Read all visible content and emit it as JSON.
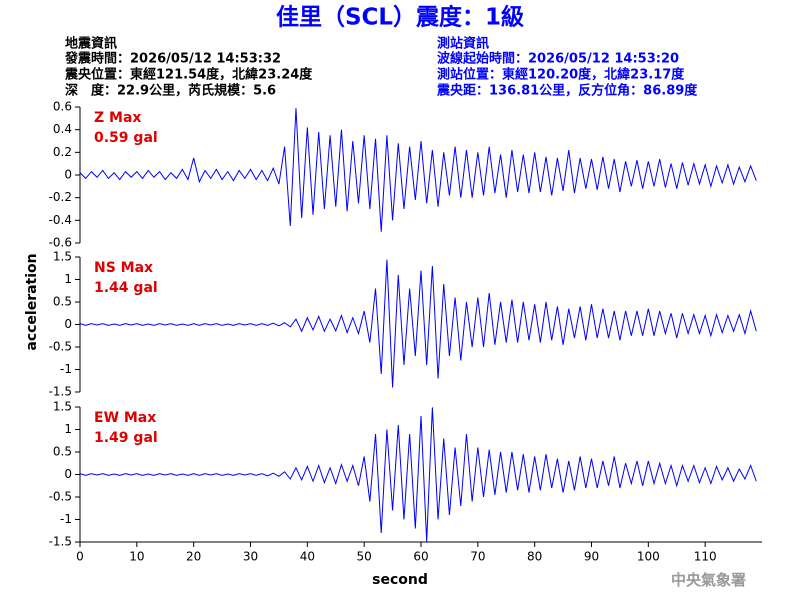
{
  "header": {
    "title": "佳里（SCL）震度：1級",
    "left": [
      "地震資訊",
      "發震時間：2026/05/12 14:53:32",
      "震央位置：東經121.54度，北緯23.24度",
      "深　度：22.9公里，芮氏規模：5.6"
    ],
    "right": [
      "測站資訊",
      "波線起始時間：2026/05/12 14:53:20",
      "測站位置：東經120.20度，北緯23.17度",
      "震央距：136.81公里，反方位角：86.89度"
    ]
  },
  "footer": "中央氣象署",
  "chart_data": {
    "type": "line",
    "xlabel": "second",
    "ylabel": "acceleration",
    "xlim": [
      0,
      120
    ],
    "xticks": [
      0,
      10,
      20,
      30,
      40,
      50,
      60,
      70,
      80,
      90,
      100,
      110
    ],
    "x": [
      0,
      1,
      2,
      3,
      4,
      5,
      6,
      7,
      8,
      9,
      10,
      11,
      12,
      13,
      14,
      15,
      16,
      17,
      18,
      19,
      20,
      21,
      22,
      23,
      24,
      25,
      26,
      27,
      28,
      29,
      30,
      31,
      32,
      33,
      34,
      35,
      36,
      37,
      38,
      39,
      40,
      41,
      42,
      43,
      44,
      45,
      46,
      47,
      48,
      49,
      50,
      51,
      52,
      53,
      54,
      55,
      56,
      57,
      58,
      59,
      60,
      61,
      62,
      63,
      64,
      65,
      66,
      67,
      68,
      69,
      70,
      71,
      72,
      73,
      74,
      75,
      76,
      77,
      78,
      79,
      80,
      81,
      82,
      83,
      84,
      85,
      86,
      87,
      88,
      89,
      90,
      91,
      92,
      93,
      94,
      95,
      96,
      97,
      98,
      99,
      100,
      101,
      102,
      103,
      104,
      105,
      106,
      107,
      108,
      109,
      110,
      111,
      112,
      113,
      114,
      115,
      116,
      117,
      118,
      119
    ],
    "series": [
      {
        "name": "Z Max",
        "max_label": "0.59 gal",
        "color": "#0000ff",
        "ylim": [
          -0.6,
          0.6
        ],
        "yticks": [
          0.6,
          0.4,
          0.2,
          0,
          -0.2,
          -0.4,
          -0.6
        ],
        "values": [
          0.02,
          -0.03,
          0.03,
          -0.02,
          0.04,
          -0.03,
          0.02,
          -0.04,
          0.03,
          -0.02,
          0.03,
          -0.03,
          0.04,
          -0.02,
          0.03,
          -0.04,
          0.02,
          -0.03,
          0.05,
          -0.04,
          0.15,
          -0.06,
          0.04,
          -0.03,
          0.05,
          -0.04,
          0.03,
          -0.05,
          0.04,
          -0.03,
          0.05,
          -0.04,
          0.04,
          -0.05,
          0.06,
          -0.08,
          0.25,
          -0.45,
          0.59,
          -0.38,
          0.42,
          -0.35,
          0.38,
          -0.3,
          0.35,
          -0.28,
          0.4,
          -0.32,
          0.3,
          -0.25,
          0.35,
          -0.3,
          0.32,
          -0.5,
          0.35,
          -0.4,
          0.28,
          -0.3,
          0.25,
          -0.22,
          0.3,
          -0.25,
          0.22,
          -0.28,
          0.2,
          -0.18,
          0.25,
          -0.2,
          0.22,
          -0.2,
          0.2,
          -0.18,
          0.25,
          -0.16,
          0.18,
          -0.2,
          0.22,
          -0.15,
          0.18,
          -0.16,
          0.2,
          -0.15,
          0.16,
          -0.18,
          0.15,
          -0.14,
          0.22,
          -0.16,
          0.15,
          -0.12,
          0.14,
          -0.13,
          0.16,
          -0.12,
          0.14,
          -0.15,
          0.12,
          -0.1,
          0.13,
          -0.12,
          0.12,
          -0.1,
          0.14,
          -0.11,
          0.1,
          -0.12,
          0.11,
          -0.09,
          0.1,
          -0.08,
          0.09,
          -0.1,
          0.08,
          -0.07,
          0.09,
          -0.08,
          0.07,
          -0.06,
          0.08,
          -0.05
        ]
      },
      {
        "name": "NS Max",
        "max_label": "1.44 gal",
        "color": "#0000ff",
        "ylim": [
          -1.5,
          1.5
        ],
        "yticks": [
          1.5,
          1,
          0.5,
          0,
          -0.5,
          -1,
          -1.5
        ],
        "values": [
          0.02,
          -0.02,
          0.02,
          -0.01,
          0.02,
          -0.02,
          0.01,
          -0.02,
          0.02,
          -0.01,
          0.02,
          -0.02,
          0.01,
          -0.02,
          0.02,
          -0.01,
          0.02,
          -0.02,
          0.01,
          -0.02,
          0.02,
          -0.02,
          0.02,
          -0.01,
          0.02,
          -0.02,
          0.01,
          -0.02,
          0.02,
          -0.01,
          0.02,
          -0.02,
          0.02,
          -0.02,
          0.03,
          -0.03,
          0.04,
          -0.05,
          0.12,
          -0.15,
          0.15,
          -0.12,
          0.18,
          -0.15,
          0.12,
          -0.14,
          0.2,
          -0.18,
          0.15,
          -0.2,
          0.3,
          -0.4,
          0.8,
          -1.1,
          1.44,
          -1.4,
          1.1,
          -0.9,
          0.8,
          -0.7,
          1.2,
          -0.9,
          1.3,
          -1.2,
          0.9,
          -0.7,
          0.6,
          -0.8,
          0.5,
          -0.5,
          0.6,
          -0.5,
          0.7,
          -0.45,
          0.5,
          -0.4,
          0.55,
          -0.4,
          0.5,
          -0.35,
          0.45,
          -0.4,
          0.5,
          -0.35,
          0.4,
          -0.45,
          0.35,
          -0.3,
          0.4,
          -0.35,
          0.45,
          -0.3,
          0.35,
          -0.3,
          0.3,
          -0.35,
          0.3,
          -0.25,
          0.3,
          -0.25,
          0.35,
          -0.25,
          0.3,
          -0.2,
          0.25,
          -0.3,
          0.25,
          -0.2,
          0.22,
          -0.2,
          0.2,
          -0.25,
          0.22,
          -0.18,
          0.2,
          -0.15,
          0.22,
          -0.2,
          0.3,
          -0.15
        ]
      },
      {
        "name": "EW Max",
        "max_label": "1.49 gal",
        "color": "#0000ff",
        "ylim": [
          -1.5,
          1.5
        ],
        "yticks": [
          1.5,
          1,
          0.5,
          0,
          -0.5,
          -1,
          -1.5
        ],
        "values": [
          0.02,
          -0.02,
          0.02,
          -0.01,
          0.02,
          -0.02,
          0.01,
          -0.02,
          0.02,
          -0.01,
          0.02,
          -0.02,
          0.01,
          -0.02,
          0.02,
          -0.01,
          0.02,
          -0.02,
          0.01,
          -0.02,
          0.02,
          -0.02,
          0.02,
          -0.01,
          0.02,
          -0.02,
          0.01,
          -0.02,
          0.02,
          -0.01,
          0.02,
          -0.02,
          0.02,
          -0.03,
          0.03,
          -0.04,
          0.06,
          -0.1,
          0.15,
          -0.12,
          0.18,
          -0.15,
          0.2,
          -0.18,
          0.15,
          -0.2,
          0.22,
          -0.15,
          0.2,
          -0.25,
          0.4,
          -0.6,
          0.9,
          -1.3,
          1.0,
          -0.8,
          1.1,
          -1.0,
          0.9,
          -1.2,
          1.3,
          -1.49,
          1.49,
          -1.0,
          0.8,
          -0.9,
          0.6,
          -0.7,
          0.9,
          -0.6,
          0.6,
          -0.5,
          0.55,
          -0.45,
          0.5,
          -0.4,
          0.5,
          -0.35,
          0.45,
          -0.4,
          0.4,
          -0.35,
          0.45,
          -0.3,
          0.35,
          -0.4,
          0.3,
          -0.35,
          0.4,
          -0.3,
          0.35,
          -0.3,
          0.3,
          -0.25,
          0.4,
          -0.3,
          0.25,
          -0.2,
          0.3,
          -0.25,
          0.3,
          -0.2,
          0.25,
          -0.2,
          0.2,
          -0.25,
          0.2,
          -0.15,
          0.2,
          -0.18,
          0.15,
          -0.2,
          0.18,
          -0.12,
          0.15,
          -0.15,
          0.12,
          -0.1,
          0.2,
          -0.15
        ]
      }
    ]
  }
}
